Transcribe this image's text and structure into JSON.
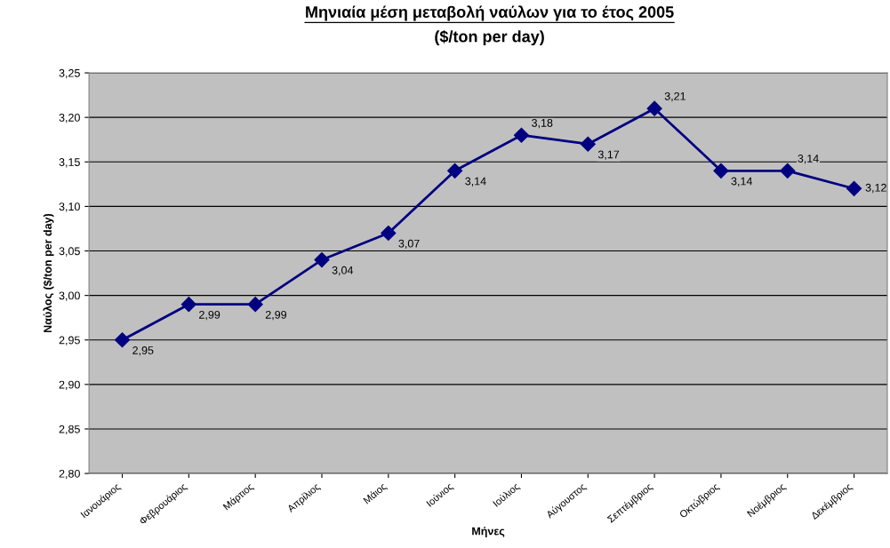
{
  "chart_data": {
    "type": "line",
    "title": "Μηνιαία μέση μεταβολή ναύλων για το έτος 2005",
    "subtitle": "($/ton per day)",
    "xlabel": "Μήνες",
    "ylabel": "Ναύλος ($/ton per day)",
    "categories": [
      "Ιανουάριος",
      "Φεβρουάριος",
      "Μάρτιος",
      "Απρίλιος",
      "Μάιος",
      "Ιούνιος",
      "Ιούλιος",
      "Αύγουστος",
      "Σεπτέμβριος",
      "Οκτώβριος",
      "Νοέμβριος",
      "Δεκέμβριος"
    ],
    "series": [
      {
        "color": "#000080",
        "values": [
          2.95,
          2.99,
          2.99,
          3.04,
          3.07,
          3.14,
          3.18,
          3.17,
          3.21,
          3.14,
          3.14,
          3.12
        ],
        "value_labels": [
          "2,95",
          "2,99",
          "2,99",
          "3,04",
          "3,07",
          "3,14",
          "3,18",
          "3,17",
          "3,21",
          "3,14",
          "3,14",
          "3,12"
        ]
      }
    ],
    "ylim": [
      2.8,
      3.25
    ],
    "yticks": [
      {
        "value": 2.8,
        "label": "2,80"
      },
      {
        "value": 2.85,
        "label": "2,85"
      },
      {
        "value": 2.9,
        "label": "2,90"
      },
      {
        "value": 2.95,
        "label": "2,95"
      },
      {
        "value": 3.0,
        "label": "3,00"
      },
      {
        "value": 3.05,
        "label": "3,05"
      },
      {
        "value": 3.1,
        "label": "3,10"
      },
      {
        "value": 3.15,
        "label": "3,15"
      },
      {
        "value": 3.2,
        "label": "3,20"
      },
      {
        "value": 3.25,
        "label": "3,25"
      }
    ],
    "grid": "y",
    "marker": "diamond",
    "line_style": "solid"
  }
}
